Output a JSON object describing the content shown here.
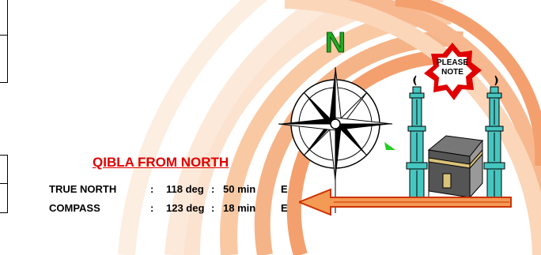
{
  "compass": {
    "north_label": "N"
  },
  "note": {
    "label_line1": "PLEASE",
    "label_line2": "NOTE"
  },
  "qibla": {
    "title": "QIBLA FROM NORTH",
    "rows": [
      {
        "label": "TRUE NORTH",
        "sep1": ":",
        "degrees": "118 deg",
        "sep2": ":",
        "minutes": "50 min",
        "dir": "E"
      },
      {
        "label": "COMPASS",
        "sep1": ":",
        "degrees": "123 deg",
        "sep2": ":",
        "minutes": "18 min",
        "dir": "E"
      }
    ]
  },
  "colors": {
    "arc_light": "#fbe3cf",
    "arc_mid": "#f9c9a4",
    "arc_strong": "#f3a06e",
    "title_red": "#e00000",
    "north_green": "#22aa22",
    "arrow_red": "#cc3300",
    "arrow_orange": "#f39a55",
    "mosque_teal": "#46c6c0",
    "badge_red": "#e00000"
  },
  "icons": [
    "compass-rose-icon",
    "north-arrow-icon",
    "qibla-arrow-icon",
    "kaaba-icon",
    "minaret-icon",
    "note-badge-icon"
  ]
}
